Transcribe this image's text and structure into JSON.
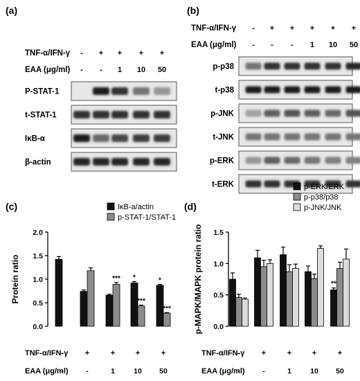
{
  "panels": {
    "a": {
      "label": "(a)",
      "treatment_label": "TNF-α/IFN-γ",
      "dose_label": "EAA (μg/ml)",
      "treatment_values": [
        "-",
        "+",
        "+",
        "+",
        "+"
      ],
      "dose_values": [
        "-",
        "-",
        "1",
        "10",
        "50"
      ],
      "blots": [
        {
          "name": "P-STAT-1",
          "intensity": [
            0.0,
            0.95,
            0.85,
            0.55,
            0.4
          ]
        },
        {
          "name": "t-STAT-1",
          "intensity": [
            0.85,
            0.85,
            0.85,
            0.85,
            0.85
          ]
        },
        {
          "name": "IκB-α",
          "intensity": [
            0.95,
            0.6,
            0.75,
            0.8,
            0.8
          ]
        },
        {
          "name": "β-actin",
          "intensity": [
            0.9,
            0.9,
            0.9,
            0.9,
            0.9
          ]
        }
      ]
    },
    "b": {
      "label": "(b)",
      "treatment_label": "TNF-α/IFN-γ",
      "dose_label": "EAA (μg/ml)",
      "treatment_values": [
        "-",
        "+",
        "+",
        "+",
        "+",
        "+"
      ],
      "dose_values": [
        "-",
        "-",
        "-",
        "1",
        "10",
        "50"
      ],
      "blots": [
        {
          "name": "p-p38",
          "intensity": [
            0.55,
            0.85,
            0.85,
            0.85,
            0.85,
            0.9
          ]
        },
        {
          "name": "t-p38",
          "intensity": [
            0.95,
            0.95,
            0.95,
            0.95,
            0.95,
            0.95
          ]
        },
        {
          "name": "p-JNK",
          "intensity": [
            0.35,
            0.65,
            0.7,
            0.65,
            0.6,
            0.7
          ]
        },
        {
          "name": "t-JNK",
          "intensity": [
            0.55,
            0.55,
            0.55,
            0.55,
            0.55,
            0.55
          ]
        },
        {
          "name": "p-ERK",
          "intensity": [
            0.4,
            0.65,
            0.6,
            0.55,
            0.5,
            0.5
          ]
        },
        {
          "name": "t-ERK",
          "intensity": [
            0.85,
            0.85,
            0.85,
            0.85,
            0.85,
            0.85
          ]
        }
      ]
    }
  },
  "chart_data": [
    {
      "type": "bar",
      "panel_label": "(c)",
      "ylabel": "Protein ratio",
      "ylim": [
        0,
        2.0
      ],
      "yticks": [
        "0.0",
        "0.5",
        "1.0",
        "1.5",
        "2.0"
      ],
      "legend_position": "top-right",
      "series": [
        {
          "name": "IκB-a/actin",
          "color": "#111111",
          "values": [
            1.42,
            0.74,
            0.66,
            0.92,
            0.87
          ],
          "errors": [
            0.06,
            0.03,
            0.02,
            0.03,
            0.02
          ],
          "sig": [
            "",
            "",
            "",
            "*",
            "*"
          ]
        },
        {
          "name": "p-STAT-1/STAT-1",
          "color": "#8c8c8c",
          "values": [
            null,
            1.18,
            0.89,
            0.43,
            0.28
          ],
          "errors": [
            0,
            0.06,
            0.04,
            0.02,
            0.01
          ],
          "sig": [
            "",
            "",
            "***",
            "***",
            "***"
          ]
        }
      ],
      "treatment_label": "TNF-α/IFN-γ",
      "dose_label": "EAA (μg/ml)",
      "treatment_values": [
        "-",
        "+",
        "+",
        "+",
        "+"
      ],
      "dose_values": [
        "-",
        "-",
        "1",
        "10",
        "50"
      ]
    },
    {
      "type": "bar",
      "panel_label": "(d)",
      "ylabel": "p-MAPK/MAPK protein ratio",
      "ylim": [
        0,
        1.5
      ],
      "yticks": [
        "0.0",
        "0.5",
        "1.0",
        "1.5"
      ],
      "legend_position": "top-right",
      "series": [
        {
          "name": "p-ERK/ERK",
          "color": "#111111",
          "values": [
            0.75,
            1.09,
            1.14,
            0.87,
            0.58
          ],
          "errors": [
            0.1,
            0.12,
            0.12,
            0.09,
            0.03
          ],
          "sig": [
            "",
            "",
            "",
            "",
            "**"
          ]
        },
        {
          "name": "p-p38/p38",
          "color": "#8c8c8c",
          "values": [
            0.46,
            0.95,
            0.87,
            0.76,
            0.92
          ],
          "errors": [
            0.05,
            0.1,
            0.11,
            0.07,
            0.1
          ],
          "sig": [
            "",
            "",
            "",
            "",
            ""
          ]
        },
        {
          "name": "p-JNK/JNK",
          "color": "#dcdcdc",
          "values": [
            0.43,
            1.0,
            0.92,
            1.24,
            1.07
          ],
          "errors": [
            0.02,
            0.06,
            0.07,
            0.04,
            0.16
          ],
          "sig": [
            "",
            "",
            "",
            "",
            ""
          ]
        }
      ],
      "treatment_label": "TNF-α/IFN-γ",
      "dose_label": "EAA (μg/ml)",
      "treatment_values": [
        "-",
        "+",
        "+",
        "+",
        "+"
      ],
      "dose_values": [
        "-",
        "-",
        "1",
        "10",
        "50"
      ]
    }
  ]
}
